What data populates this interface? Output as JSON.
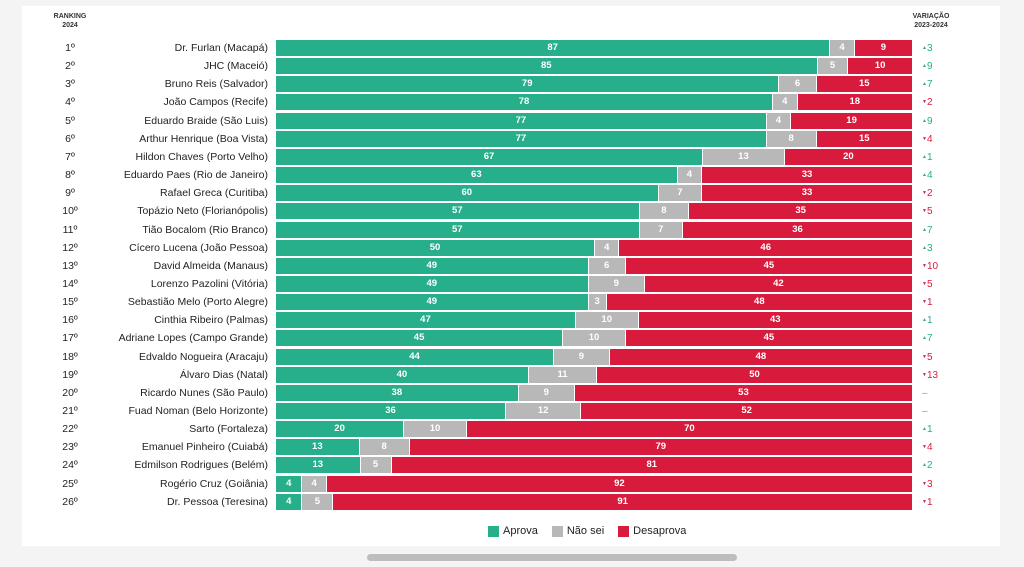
{
  "header": {
    "left_line1": "RANKING",
    "left_line2": "2024",
    "right_line1": "VARIAÇÃO",
    "right_line2": "2023-2024"
  },
  "colors": {
    "aprova": "#27ae8a",
    "nao_sei": "#b8b8b8",
    "desaprova": "#d81b3c",
    "up": "#27ae8a",
    "down": "#d81b3c",
    "neutral": "#999999"
  },
  "legend": [
    "Aprova",
    "Não sei",
    "Desaprova"
  ],
  "chart_data": {
    "type": "bar",
    "stacked": true,
    "orientation": "horizontal",
    "categories": [
      "Dr. Furlan (Macapá)",
      "JHC (Maceió)",
      "Bruno Reis (Salvador)",
      "João Campos (Recife)",
      "Eduardo Braide (São Luis)",
      "Arthur Henrique (Boa Vista)",
      "Hildon Chaves (Porto Velho)",
      "Eduardo Paes (Rio de Janeiro)",
      "Rafael Greca (Curitiba)",
      "Topázio Neto (Florianópolis)",
      "Tião Bocalom (Rio Branco)",
      "Cícero Lucena (João Pessoa)",
      "David Almeida (Manaus)",
      "Lorenzo Pazolini (Vitória)",
      "Sebastião Melo (Porto Alegre)",
      "Cinthia Ribeiro (Palmas)",
      "Adriane Lopes (Campo Grande)",
      "Edvaldo Nogueira (Aracaju)",
      "Álvaro Dias (Natal)",
      "Ricardo Nunes (São Paulo)",
      "Fuad Noman (Belo Horizonte)",
      "Sarto (Fortaleza)",
      "Emanuel Pinheiro (Cuiabá)",
      "Edmilson Rodrigues (Belém)",
      "Rogério Cruz (Goiânia)",
      "Dr. Pessoa (Teresina)"
    ],
    "ranks": [
      "1º",
      "2º",
      "3º",
      "4º",
      "5º",
      "6º",
      "7º",
      "8º",
      "9º",
      "10º",
      "11º",
      "12º",
      "13º",
      "14º",
      "15º",
      "16º",
      "17º",
      "18º",
      "19º",
      "20º",
      "21º",
      "22º",
      "23º",
      "24º",
      "25º",
      "26º"
    ],
    "series": [
      {
        "name": "Aprova",
        "values": [
          87,
          85,
          79,
          78,
          77,
          77,
          67,
          63,
          60,
          57,
          57,
          50,
          49,
          49,
          49,
          47,
          45,
          44,
          40,
          38,
          36,
          20,
          13,
          13,
          4,
          4
        ]
      },
      {
        "name": "Não sei",
        "values": [
          4,
          5,
          6,
          4,
          4,
          8,
          13,
          4,
          7,
          8,
          7,
          4,
          6,
          9,
          3,
          10,
          10,
          9,
          11,
          9,
          12,
          10,
          8,
          5,
          4,
          5
        ]
      },
      {
        "name": "Desaprova",
        "values": [
          9,
          10,
          15,
          18,
          19,
          15,
          20,
          33,
          33,
          35,
          36,
          46,
          45,
          42,
          48,
          43,
          45,
          48,
          50,
          53,
          52,
          70,
          79,
          81,
          92,
          91
        ]
      }
    ],
    "variation": [
      {
        "dir": "up",
        "value": "3"
      },
      {
        "dir": "up",
        "value": "9"
      },
      {
        "dir": "up",
        "value": "7"
      },
      {
        "dir": "down",
        "value": "2"
      },
      {
        "dir": "up",
        "value": "9"
      },
      {
        "dir": "down",
        "value": "4"
      },
      {
        "dir": "up",
        "value": "1"
      },
      {
        "dir": "up",
        "value": "4"
      },
      {
        "dir": "down",
        "value": "2"
      },
      {
        "dir": "down",
        "value": "5"
      },
      {
        "dir": "up",
        "value": "7"
      },
      {
        "dir": "up",
        "value": "3"
      },
      {
        "dir": "down",
        "value": "10"
      },
      {
        "dir": "down",
        "value": "5"
      },
      {
        "dir": "down",
        "value": "1"
      },
      {
        "dir": "up",
        "value": "1"
      },
      {
        "dir": "up",
        "value": "7"
      },
      {
        "dir": "down",
        "value": "5"
      },
      {
        "dir": "down",
        "value": "13"
      },
      {
        "dir": "none",
        "value": "–"
      },
      {
        "dir": "none",
        "value": "–"
      },
      {
        "dir": "up",
        "value": "1"
      },
      {
        "dir": "down",
        "value": "4"
      },
      {
        "dir": "up",
        "value": "2"
      },
      {
        "dir": "down",
        "value": "3"
      },
      {
        "dir": "down",
        "value": "1"
      }
    ],
    "xlim": [
      0,
      100
    ],
    "grid": false,
    "legend_position": "bottom"
  }
}
